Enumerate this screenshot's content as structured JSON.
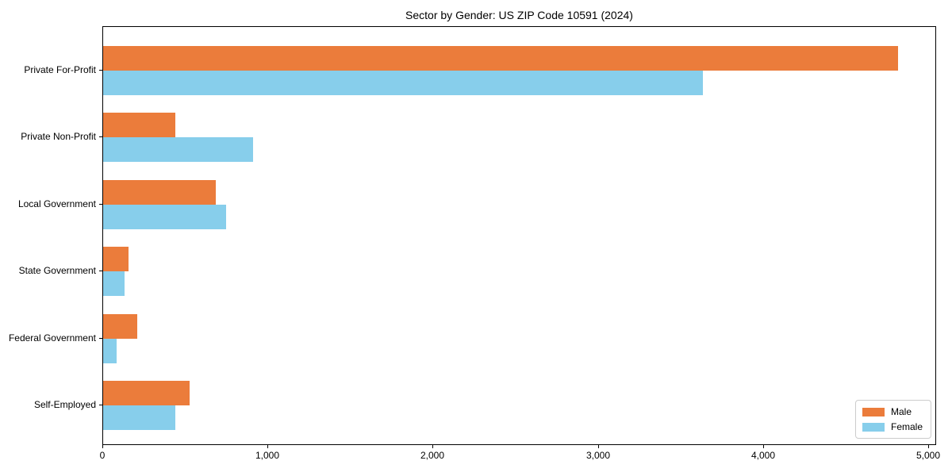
{
  "chart_data": {
    "type": "bar",
    "orientation": "horizontal",
    "title": "Sector by Gender: US ZIP Code 10591 (2024)",
    "categories": [
      "Private For-Profit",
      "Private Non-Profit",
      "Local Government",
      "State Government",
      "Federal Government",
      "Self-Employed"
    ],
    "series": [
      {
        "name": "Male",
        "color": "#EB7C3B",
        "values": [
          4815,
          435,
          680,
          155,
          205,
          525
        ]
      },
      {
        "name": "Female",
        "color": "#87CEEB",
        "values": [
          3630,
          910,
          745,
          130,
          80,
          435
        ]
      }
    ],
    "xlabel": "",
    "ylabel": "",
    "xlim": [
      0,
      5048
    ],
    "xticks": [
      0,
      1000,
      2000,
      3000,
      4000,
      5000
    ],
    "xtick_labels": [
      "0",
      "1,000",
      "2,000",
      "3,000",
      "4,000",
      "5,000"
    ],
    "grid": false,
    "legend_position": "lower right"
  }
}
